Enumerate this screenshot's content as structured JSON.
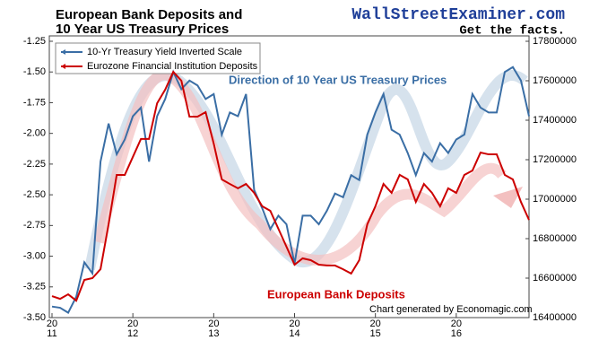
{
  "chart_data": {
    "type": "line",
    "title": "European Bank Deposits and",
    "subtitle": "10 Year US Treasury Prices",
    "brand": "WallStreetExaminer.com",
    "tagline": "Get the facts.",
    "annotations": [
      "Direction of 10 Year US Treasury Prices",
      "European Bank Deposits",
      "Chart generated by Economagic.com"
    ],
    "x": [
      2011.0,
      2011.1,
      2011.2,
      2011.3,
      2011.4,
      2011.5,
      2011.6,
      2011.7,
      2011.8,
      2011.9,
      2012.0,
      2012.1,
      2012.2,
      2012.3,
      2012.4,
      2012.5,
      2012.6,
      2012.7,
      2012.8,
      2012.9,
      2013.0,
      2013.1,
      2013.2,
      2013.3,
      2013.4,
      2013.5,
      2013.6,
      2013.7,
      2013.8,
      2013.9,
      2014.0,
      2014.1,
      2014.2,
      2014.3,
      2014.4,
      2014.5,
      2014.6,
      2014.7,
      2014.8,
      2014.9,
      2015.0,
      2015.1,
      2015.2,
      2015.3,
      2015.4,
      2015.5,
      2015.6,
      2015.7,
      2015.8,
      2015.9,
      2016.0,
      2016.1,
      2016.2,
      2016.3,
      2016.4,
      2016.5,
      2016.6,
      2016.7,
      2016.8,
      2016.9
    ],
    "series": [
      {
        "name": "10-Yr Treasury Yield Inverted Scale",
        "color": "#3a6ea5",
        "axis": "y",
        "values": [
          -3.41,
          -3.42,
          -3.46,
          -3.33,
          -3.05,
          -3.14,
          -2.23,
          -1.92,
          -2.17,
          -2.05,
          -1.86,
          -1.79,
          -2.23,
          -1.86,
          -1.72,
          -1.5,
          -1.64,
          -1.57,
          -1.61,
          -1.72,
          -1.68,
          -2.01,
          -1.83,
          -1.86,
          -1.68,
          -2.46,
          -2.61,
          -2.78,
          -2.67,
          -2.74,
          -3.06,
          -2.67,
          -2.67,
          -2.74,
          -2.63,
          -2.49,
          -2.52,
          -2.34,
          -2.38,
          -2.01,
          -1.83,
          -1.68,
          -1.97,
          -2.01,
          -2.16,
          -2.34,
          -2.16,
          -2.23,
          -2.08,
          -2.16,
          -2.05,
          -2.01,
          -1.68,
          -1.79,
          -1.83,
          -1.83,
          -1.5,
          -1.46,
          -1.57,
          -1.86
        ]
      },
      {
        "name": "Eurozone Financial Institution Deposits",
        "color": "#cc0000",
        "axis": "y2",
        "values": [
          16509000,
          16495000,
          16518000,
          16486000,
          16591000,
          16600000,
          16645000,
          16873000,
          17123000,
          17123000,
          17214000,
          17305000,
          17305000,
          17486000,
          17555000,
          17645000,
          17600000,
          17418000,
          17418000,
          17441000,
          17282000,
          17100000,
          17077000,
          17055000,
          17077000,
          17032000,
          16964000,
          16941000,
          16850000,
          16759000,
          16668000,
          16700000,
          16691000,
          16668000,
          16664000,
          16664000,
          16645000,
          16623000,
          16691000,
          16873000,
          16964000,
          17077000,
          17032000,
          17123000,
          17100000,
          16986000,
          17077000,
          17032000,
          16964000,
          17055000,
          17032000,
          17123000,
          17145000,
          17236000,
          17227000,
          17227000,
          17123000,
          17100000,
          16986000,
          16895000
        ]
      }
    ],
    "xlim": [
      2011,
      2016.9
    ],
    "xticks": [
      {
        "value": 2011,
        "label": "20\n11"
      },
      {
        "value": 2012,
        "label": "20\n12"
      },
      {
        "value": 2013,
        "label": "20\n13"
      },
      {
        "value": 2014,
        "label": "20\n14"
      },
      {
        "value": 2015,
        "label": "20\n15"
      },
      {
        "value": 2016,
        "label": "20\n16"
      }
    ],
    "ylim": [
      -3.5,
      -1.25
    ],
    "yticks": [
      {
        "value": -3.5,
        "label": "-3.50"
      },
      -3.25,
      {
        "value": -3.0,
        "label": "-3.00"
      },
      -2.75,
      {
        "value": -2.5,
        "label": "-2.50"
      },
      -2.25,
      {
        "value": -2.0,
        "label": "-2.00"
      },
      -1.75,
      {
        "value": -1.5,
        "label": "-1.50"
      },
      -1.25
    ],
    "y2lim": [
      16400000,
      17800000
    ],
    "y2ticks": [
      16400000,
      16600000,
      16800000,
      17000000,
      17200000,
      17400000,
      17600000,
      17800000
    ],
    "grid": false,
    "legend": "upper left"
  }
}
